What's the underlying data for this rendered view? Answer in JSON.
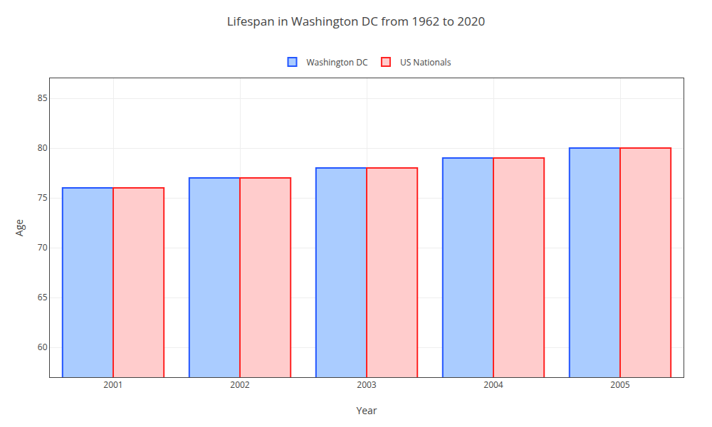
{
  "chart_data": {
    "type": "bar",
    "title": "Lifespan in Washington DC from 1962 to 2020",
    "x_label": "Year",
    "y_label": "Age",
    "categories": [
      "2001",
      "2002",
      "2003",
      "2004",
      "2005"
    ],
    "series": [
      {
        "name": "Washington DC",
        "color": "#aaccff",
        "values": [
          76,
          77,
          78,
          79,
          80
        ]
      },
      {
        "name": "US Nationals",
        "color": "#ffcccc",
        "values": [
          76,
          77,
          78,
          79,
          80
        ]
      }
    ],
    "ylim": [
      57,
      87
    ],
    "yticks": [
      60,
      65,
      70,
      75,
      80,
      85
    ],
    "grid": true,
    "legend": "upper center"
  }
}
